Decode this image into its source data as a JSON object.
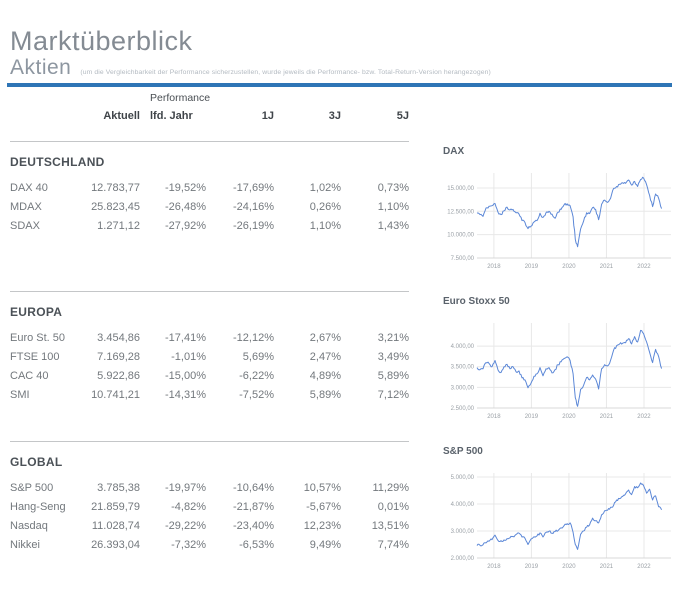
{
  "page": {
    "title": "Marktüberblick",
    "section_title": "Aktien",
    "section_note": "(um die Vergleichbarkeit der Performance sicherzustellen, wurde jeweils die Performance- bzw. Total-Return-Version herangezogen)"
  },
  "colors": {
    "accent": "#2e75b6",
    "chart_line": "#5b87d7",
    "grid": "#e8e8e8",
    "axis": "#d8d8d8",
    "tick_text": "#9aa0a6"
  },
  "table": {
    "group_header": "Performance",
    "columns": [
      "Aktuell",
      "lfd. Jahr",
      "1J",
      "3J",
      "5J"
    ],
    "sections": [
      {
        "name": "DEUTSCHLAND",
        "rows": [
          {
            "label": "DAX 40",
            "values": [
              "12.783,77",
              "-19,52%",
              "-17,69%",
              "1,02%",
              "0,73%"
            ]
          },
          {
            "label": "MDAX",
            "values": [
              "25.823,45",
              "-26,48%",
              "-24,16%",
              "0,26%",
              "1,10%"
            ]
          },
          {
            "label": "SDAX",
            "values": [
              "1.271,12",
              "-27,92%",
              "-26,19%",
              "1,10%",
              "1,43%"
            ]
          }
        ]
      },
      {
        "name": "EUROPA",
        "rows": [
          {
            "label": "Euro St. 50",
            "values": [
              "3.454,86",
              "-17,41%",
              "-12,12%",
              "2,67%",
              "3,21%"
            ]
          },
          {
            "label": "FTSE 100",
            "values": [
              "7.169,28",
              "-1,01%",
              "5,69%",
              "2,47%",
              "3,49%"
            ]
          },
          {
            "label": "CAC 40",
            "values": [
              "5.922,86",
              "-15,00%",
              "-6,22%",
              "4,89%",
              "5,89%"
            ]
          },
          {
            "label": "SMI",
            "values": [
              "10.741,21",
              "-14,31%",
              "-7,52%",
              "5,89%",
              "7,12%"
            ]
          }
        ]
      },
      {
        "name": "GLOBAL",
        "rows": [
          {
            "label": "S&P 500",
            "values": [
              "3.785,38",
              "-19,97%",
              "-10,64%",
              "10,57%",
              "11,29%"
            ]
          },
          {
            "label": "Hang-Seng",
            "values": [
              "21.859,79",
              "-4,82%",
              "-21,87%",
              "-5,67%",
              "0,01%"
            ]
          },
          {
            "label": "Nasdaq",
            "values": [
              "11.028,74",
              "-29,22%",
              "-23,40%",
              "12,23%",
              "13,51%"
            ]
          },
          {
            "label": "Nikkei",
            "values": [
              "26.393,04",
              "-7,32%",
              "-6,53%",
              "9,49%",
              "7,74%"
            ]
          }
        ]
      }
    ]
  },
  "chart_data": [
    {
      "id": "dax",
      "type": "line",
      "title": "DAX",
      "xlabel": "",
      "ylabel": "",
      "x_range": [
        2017.55,
        2022.72
      ],
      "y_range": [
        7500,
        16600
      ],
      "x_tick_values": [
        2018,
        2019,
        2020,
        2021,
        2022
      ],
      "x_tick_labels": [
        "2018",
        "2019",
        "2020",
        "2021",
        "2022"
      ],
      "y_tick_values": [
        15000,
        12500,
        10000,
        7500
      ],
      "y_tick_labels": [
        "15.000,00",
        "12.500,00",
        "10.000,00",
        "7.500,00"
      ],
      "x": [
        2017.55,
        2017.63,
        2017.71,
        2017.79,
        2017.87,
        2017.95,
        2018.03,
        2018.11,
        2018.19,
        2018.27,
        2018.35,
        2018.43,
        2018.51,
        2018.59,
        2018.67,
        2018.75,
        2018.83,
        2018.91,
        2018.99,
        2019.07,
        2019.15,
        2019.23,
        2019.31,
        2019.39,
        2019.47,
        2019.55,
        2019.63,
        2019.71,
        2019.79,
        2019.87,
        2019.95,
        2020.03,
        2020.11,
        2020.17,
        2020.23,
        2020.31,
        2020.39,
        2020.47,
        2020.55,
        2020.63,
        2020.71,
        2020.79,
        2020.87,
        2020.95,
        2021.03,
        2021.11,
        2021.19,
        2021.27,
        2021.35,
        2021.43,
        2021.51,
        2021.59,
        2021.67,
        2021.75,
        2021.83,
        2021.91,
        2021.99,
        2022.07,
        2022.15,
        2022.23,
        2022.31,
        2022.39,
        2022.47
      ],
      "y": [
        12300,
        12150,
        11950,
        12850,
        13050,
        13100,
        13340,
        12400,
        12150,
        12550,
        12950,
        12650,
        12700,
        12350,
        12200,
        11500,
        11300,
        10650,
        10900,
        11350,
        11500,
        12300,
        11850,
        12350,
        12500,
        12200,
        11750,
        12400,
        12700,
        13200,
        13300,
        13100,
        11900,
        9500,
        8700,
        10600,
        11450,
        12350,
        12250,
        12900,
        12700,
        11600,
        13250,
        13700,
        13450,
        13900,
        14950,
        15150,
        15400,
        15550,
        15500,
        15850,
        15300,
        15700,
        15150,
        15900,
        16050,
        15350,
        14200,
        13000,
        14350,
        13900,
        12784
      ]
    },
    {
      "id": "euro-stoxx-50",
      "type": "line",
      "title": "Euro Stoxx 50",
      "xlabel": "",
      "ylabel": "",
      "x_range": [
        2017.55,
        2022.72
      ],
      "y_range": [
        2500,
        4560
      ],
      "x_tick_values": [
        2018,
        2019,
        2020,
        2021,
        2022
      ],
      "x_tick_labels": [
        "2018",
        "2019",
        "2020",
        "2021",
        "2022"
      ],
      "y_tick_values": [
        4000,
        3500,
        3000,
        2500
      ],
      "y_tick_labels": [
        "4.000,00",
        "3.500,00",
        "3.000,00",
        "2.500,00"
      ],
      "x": [
        2017.55,
        2017.63,
        2017.71,
        2017.79,
        2017.87,
        2017.95,
        2018.03,
        2018.11,
        2018.19,
        2018.27,
        2018.35,
        2018.43,
        2018.51,
        2018.59,
        2018.67,
        2018.75,
        2018.83,
        2018.91,
        2018.99,
        2019.07,
        2019.15,
        2019.23,
        2019.31,
        2019.39,
        2019.47,
        2019.55,
        2019.63,
        2019.71,
        2019.79,
        2019.87,
        2019.95,
        2020.03,
        2020.11,
        2020.17,
        2020.23,
        2020.31,
        2020.39,
        2020.47,
        2020.55,
        2020.63,
        2020.71,
        2020.79,
        2020.87,
        2020.95,
        2021.03,
        2021.11,
        2021.19,
        2021.27,
        2021.35,
        2021.43,
        2021.51,
        2021.59,
        2021.67,
        2021.75,
        2021.83,
        2021.91,
        2021.99,
        2022.07,
        2022.15,
        2022.23,
        2022.31,
        2022.39,
        2022.47
      ],
      "y": [
        3480,
        3430,
        3450,
        3600,
        3580,
        3500,
        3650,
        3420,
        3360,
        3500,
        3560,
        3450,
        3500,
        3380,
        3400,
        3230,
        3180,
        2990,
        3100,
        3270,
        3330,
        3480,
        3280,
        3450,
        3480,
        3350,
        3430,
        3550,
        3620,
        3700,
        3740,
        3650,
        3330,
        2750,
        2540,
        2950,
        3050,
        3240,
        3180,
        3300,
        3200,
        2960,
        3450,
        3550,
        3520,
        3660,
        3900,
        4010,
        4050,
        4070,
        4080,
        4180,
        4050,
        4230,
        4100,
        4380,
        4300,
        4100,
        3850,
        3600,
        3920,
        3750,
        3455
      ]
    },
    {
      "id": "sp-500",
      "type": "line",
      "title": "S&P 500",
      "xlabel": "",
      "ylabel": "",
      "x_range": [
        2017.55,
        2022.72
      ],
      "y_range": [
        2000,
        5150
      ],
      "x_tick_values": [
        2018,
        2019,
        2020,
        2021,
        2022
      ],
      "x_tick_labels": [
        "2018",
        "2019",
        "2020",
        "2021",
        "2022"
      ],
      "y_tick_values": [
        5000,
        4000,
        3000,
        2000
      ],
      "y_tick_labels": [
        "5.000,00",
        "4.000,00",
        "3.000,00",
        "2.000,00"
      ],
      "x": [
        2017.55,
        2017.63,
        2017.71,
        2017.79,
        2017.87,
        2017.95,
        2018.03,
        2018.11,
        2018.19,
        2018.27,
        2018.35,
        2018.43,
        2018.51,
        2018.59,
        2018.67,
        2018.75,
        2018.83,
        2018.91,
        2018.99,
        2019.07,
        2019.15,
        2019.23,
        2019.31,
        2019.39,
        2019.47,
        2019.55,
        2019.63,
        2019.71,
        2019.79,
        2019.87,
        2019.95,
        2020.03,
        2020.11,
        2020.17,
        2020.23,
        2020.31,
        2020.39,
        2020.47,
        2020.55,
        2020.63,
        2020.71,
        2020.79,
        2020.87,
        2020.95,
        2021.03,
        2021.11,
        2021.19,
        2021.27,
        2021.35,
        2021.43,
        2021.51,
        2021.59,
        2021.67,
        2021.75,
        2021.83,
        2021.91,
        2021.99,
        2022.07,
        2022.15,
        2022.23,
        2022.31,
        2022.39,
        2022.47
      ],
      "y": [
        2460,
        2470,
        2490,
        2560,
        2620,
        2680,
        2850,
        2650,
        2640,
        2670,
        2720,
        2750,
        2800,
        2870,
        2920,
        2780,
        2730,
        2500,
        2700,
        2790,
        2820,
        2930,
        2780,
        2950,
        2990,
        2920,
        2980,
        3020,
        3120,
        3200,
        3270,
        3300,
        2950,
        2500,
        2320,
        2880,
        3000,
        3140,
        3230,
        3480,
        3380,
        3300,
        3600,
        3750,
        3770,
        3880,
        3950,
        4150,
        4200,
        4280,
        4380,
        4520,
        4350,
        4650,
        4600,
        4780,
        4680,
        4400,
        4550,
        4150,
        4300,
        3900,
        3785
      ]
    }
  ]
}
